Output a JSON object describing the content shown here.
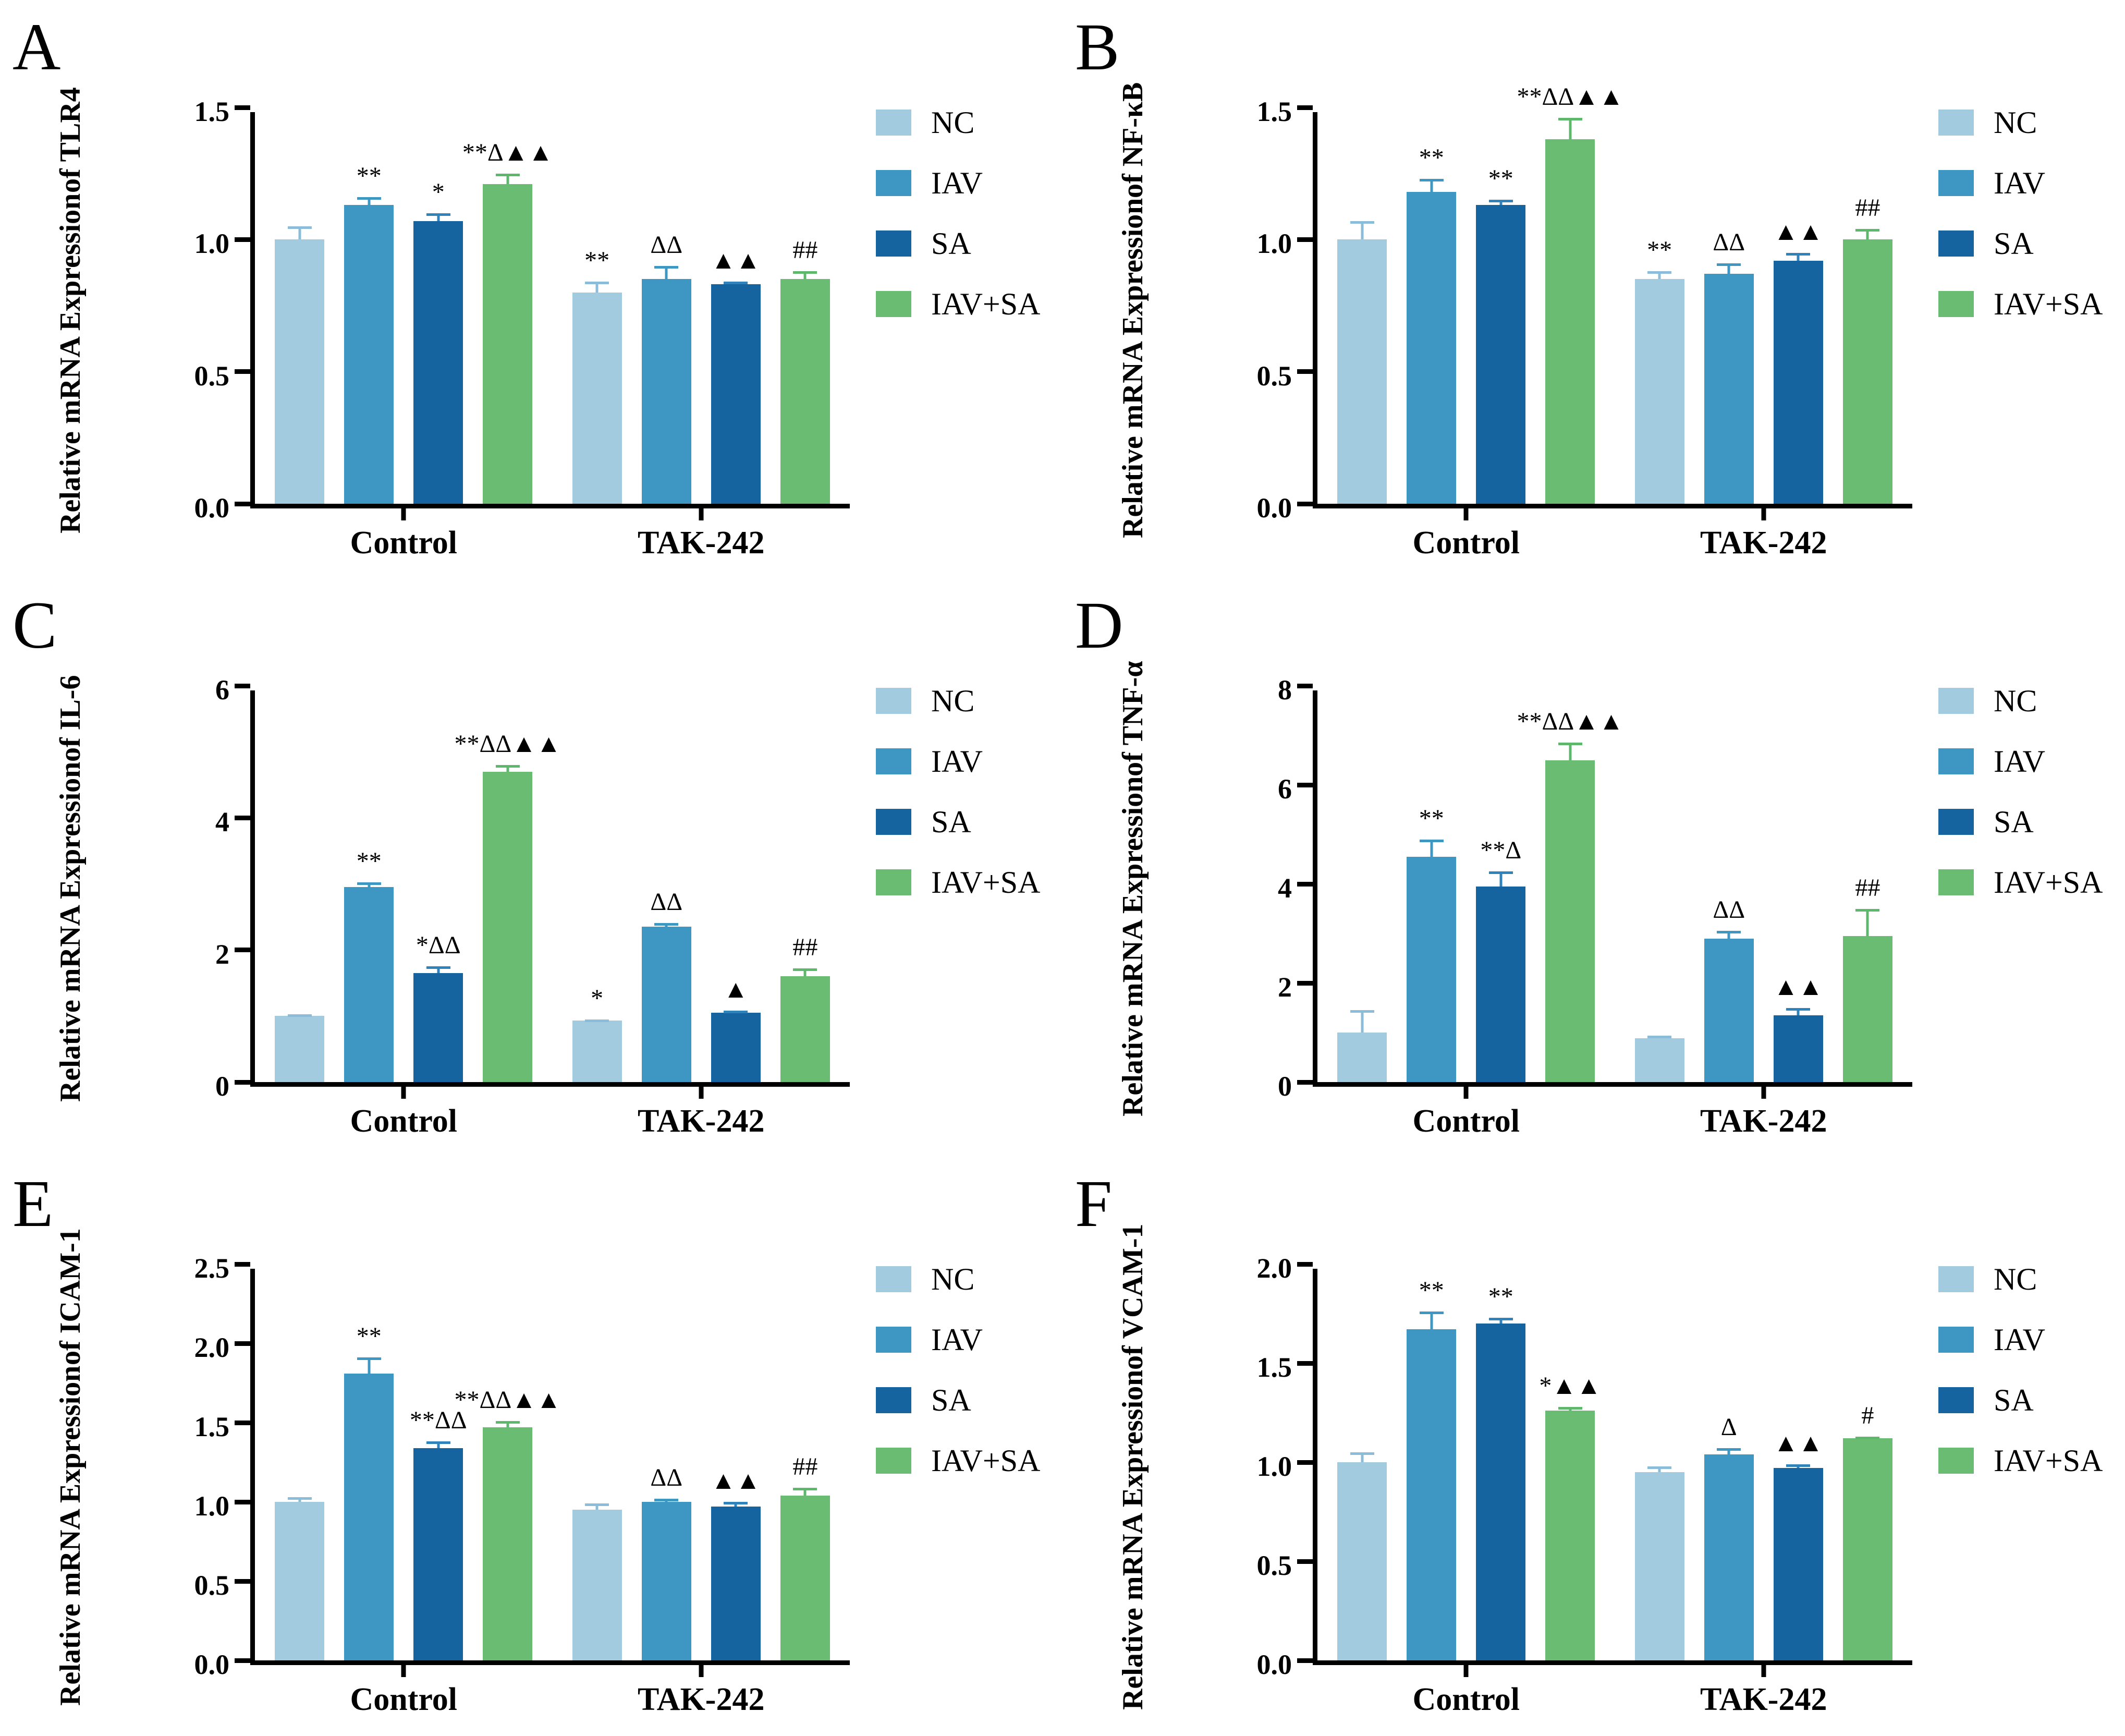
{
  "figure": {
    "background": "#ffffff",
    "group_labels": [
      "Control",
      "TAK-242"
    ],
    "series_palette": [
      {
        "name": "NC",
        "color": "#a2cbe0",
        "err_color": "#8bbcd9"
      },
      {
        "name": "IAV",
        "color": "#3e96c2",
        "err_color": "#3e96c2"
      },
      {
        "name": "SA",
        "color": "#15639f",
        "err_color": "#2f83ba"
      },
      {
        "name": "IAV+SA",
        "color": "#69bc72",
        "err_color": "#5db86c"
      }
    ],
    "axis_color": "#000000"
  },
  "chart_data": [
    {
      "type": "bar",
      "panel": "A",
      "title": "",
      "xlabel": "",
      "ylabel": "Relative mRNA Expression of TLR4",
      "ylabel_lines": [
        "Relative mRNA Expression",
        "of TLR4"
      ],
      "ylim": [
        0,
        1.5
      ],
      "ytick_step": 0.5,
      "ydecimals": 1,
      "grid": false,
      "legend_position": "right",
      "legend": [
        "NC",
        "IAV",
        "SA",
        "IAV+SA"
      ],
      "categories": [
        "Control",
        "TAK-242"
      ],
      "series": [
        {
          "name": "NC",
          "values": [
            1.0,
            0.8
          ],
          "errors": [
            0.05,
            0.04
          ],
          "annotations": [
            "",
            "**"
          ]
        },
        {
          "name": "IAV",
          "values": [
            1.13,
            0.85
          ],
          "errors": [
            0.03,
            0.05
          ],
          "annotations": [
            "**",
            "ΔΔ"
          ]
        },
        {
          "name": "SA",
          "values": [
            1.07,
            0.83
          ],
          "errors": [
            0.03,
            0.01
          ],
          "annotations": [
            "*",
            "▲▲"
          ]
        },
        {
          "name": "IAV+SA",
          "values": [
            1.21,
            0.85
          ],
          "errors": [
            0.04,
            0.03
          ],
          "annotations": [
            "**Δ▲▲",
            "##"
          ]
        }
      ]
    },
    {
      "type": "bar",
      "panel": "B",
      "title": "",
      "xlabel": "",
      "ylabel": "Relative mRNA Expression of NF-κB",
      "ylabel_lines": [
        "Relative mRNA Expression",
        "of NF-κB"
      ],
      "ylim": [
        0,
        1.5
      ],
      "ytick_step": 0.5,
      "ydecimals": 1,
      "grid": false,
      "legend_position": "right",
      "legend": [
        "NC",
        "IAV",
        "SA",
        "IAV+SA"
      ],
      "categories": [
        "Control",
        "TAK-242"
      ],
      "series": [
        {
          "name": "NC",
          "values": [
            1.0,
            0.85
          ],
          "errors": [
            0.07,
            0.03
          ],
          "annotations": [
            "",
            "**"
          ]
        },
        {
          "name": "IAV",
          "values": [
            1.18,
            0.87
          ],
          "errors": [
            0.05,
            0.04
          ],
          "annotations": [
            "**",
            "ΔΔ"
          ]
        },
        {
          "name": "SA",
          "values": [
            1.13,
            0.92
          ],
          "errors": [
            0.02,
            0.03
          ],
          "annotations": [
            "**",
            "▲▲"
          ]
        },
        {
          "name": "IAV+SA",
          "values": [
            1.38,
            1.0
          ],
          "errors": [
            0.08,
            0.04
          ],
          "annotations": [
            "**ΔΔ▲▲",
            "##"
          ]
        }
      ]
    },
    {
      "type": "bar",
      "panel": "C",
      "title": "",
      "xlabel": "",
      "ylabel": "Relative mRNA Expression of IL-6",
      "ylabel_lines": [
        "Relative mRNA Expression",
        "of IL-6"
      ],
      "ylim": [
        0,
        6
      ],
      "ytick_step": 2,
      "ydecimals": 0,
      "grid": false,
      "legend_position": "right",
      "legend": [
        "NC",
        "IAV",
        "SA",
        "IAV+SA"
      ],
      "categories": [
        "Control",
        "TAK-242"
      ],
      "series": [
        {
          "name": "NC",
          "values": [
            1.0,
            0.93
          ],
          "errors": [
            0.03,
            0.02
          ],
          "annotations": [
            "",
            "*"
          ]
        },
        {
          "name": "IAV",
          "values": [
            2.95,
            2.35
          ],
          "errors": [
            0.07,
            0.06
          ],
          "annotations": [
            "**",
            "ΔΔ"
          ]
        },
        {
          "name": "SA",
          "values": [
            1.65,
            1.05
          ],
          "errors": [
            0.1,
            0.03
          ],
          "annotations": [
            "*ΔΔ",
            "▲"
          ]
        },
        {
          "name": "IAV+SA",
          "values": [
            4.7,
            1.6
          ],
          "errors": [
            0.1,
            0.12
          ],
          "annotations": [
            "**ΔΔ▲▲",
            "##"
          ]
        }
      ]
    },
    {
      "type": "bar",
      "panel": "D",
      "title": "",
      "xlabel": "",
      "ylabel": "Relative mRNA Expression of TNF-α",
      "ylabel_lines": [
        "Relative mRNA Expression",
        "of TNF-α"
      ],
      "ylim": [
        0,
        8
      ],
      "ytick_step": 2,
      "ydecimals": 0,
      "grid": false,
      "legend_position": "right",
      "legend": [
        "NC",
        "IAV",
        "SA",
        "IAV+SA"
      ],
      "categories": [
        "Control",
        "TAK-242"
      ],
      "series": [
        {
          "name": "NC",
          "values": [
            1.0,
            0.88
          ],
          "errors": [
            0.45,
            0.06
          ],
          "annotations": [
            "",
            ""
          ]
        },
        {
          "name": "IAV",
          "values": [
            4.55,
            2.9
          ],
          "errors": [
            0.35,
            0.15
          ],
          "annotations": [
            "**",
            "ΔΔ"
          ]
        },
        {
          "name": "SA",
          "values": [
            3.95,
            1.35
          ],
          "errors": [
            0.3,
            0.15
          ],
          "annotations": [
            "**Δ",
            "▲▲"
          ]
        },
        {
          "name": "IAV+SA",
          "values": [
            6.5,
            2.95
          ],
          "errors": [
            0.35,
            0.55
          ],
          "annotations": [
            "**ΔΔ▲▲",
            "##"
          ]
        }
      ]
    },
    {
      "type": "bar",
      "panel": "E",
      "title": "",
      "xlabel": "",
      "ylabel": "Relative mRNA Expression of ICAM-1",
      "ylabel_lines": [
        "Relative mRNA Expression",
        "of ICAM-1"
      ],
      "ylim": [
        0,
        2.5
      ],
      "ytick_step": 0.5,
      "ydecimals": 1,
      "grid": false,
      "legend_position": "right",
      "legend": [
        "NC",
        "IAV",
        "SA",
        "IAV+SA"
      ],
      "categories": [
        "Control",
        "TAK-242"
      ],
      "series": [
        {
          "name": "NC",
          "values": [
            1.0,
            0.95
          ],
          "errors": [
            0.03,
            0.04
          ],
          "annotations": [
            "",
            ""
          ]
        },
        {
          "name": "IAV",
          "values": [
            1.81,
            1.0
          ],
          "errors": [
            0.1,
            0.02
          ],
          "annotations": [
            "**",
            "ΔΔ"
          ]
        },
        {
          "name": "SA",
          "values": [
            1.34,
            0.97
          ],
          "errors": [
            0.04,
            0.03
          ],
          "annotations": [
            "**ΔΔ",
            "▲▲"
          ]
        },
        {
          "name": "IAV+SA",
          "values": [
            1.47,
            1.04
          ],
          "errors": [
            0.04,
            0.05
          ],
          "annotations": [
            "**ΔΔ▲▲",
            "##"
          ]
        }
      ]
    },
    {
      "type": "bar",
      "panel": "F",
      "title": "",
      "xlabel": "",
      "ylabel": "Relative mRNA Expression of VCAM-1",
      "ylabel_lines": [
        "Relative mRNA Expression",
        "of VCAM-1"
      ],
      "ylim": [
        0,
        2.0
      ],
      "ytick_step": 0.5,
      "ydecimals": 1,
      "grid": false,
      "legend_position": "right",
      "legend": [
        "NC",
        "IAV",
        "SA",
        "IAV+SA"
      ],
      "categories": [
        "Control",
        "TAK-242"
      ],
      "series": [
        {
          "name": "NC",
          "values": [
            1.0,
            0.95
          ],
          "errors": [
            0.05,
            0.03
          ],
          "annotations": [
            "",
            ""
          ]
        },
        {
          "name": "IAV",
          "values": [
            1.67,
            1.04
          ],
          "errors": [
            0.09,
            0.03
          ],
          "annotations": [
            "**",
            "Δ"
          ]
        },
        {
          "name": "SA",
          "values": [
            1.7,
            0.97
          ],
          "errors": [
            0.03,
            0.02
          ],
          "annotations": [
            "**",
            "▲▲"
          ]
        },
        {
          "name": "IAV+SA",
          "values": [
            1.26,
            1.12
          ],
          "errors": [
            0.02,
            0.01
          ],
          "annotations": [
            "*▲▲",
            "#"
          ]
        }
      ]
    }
  ]
}
